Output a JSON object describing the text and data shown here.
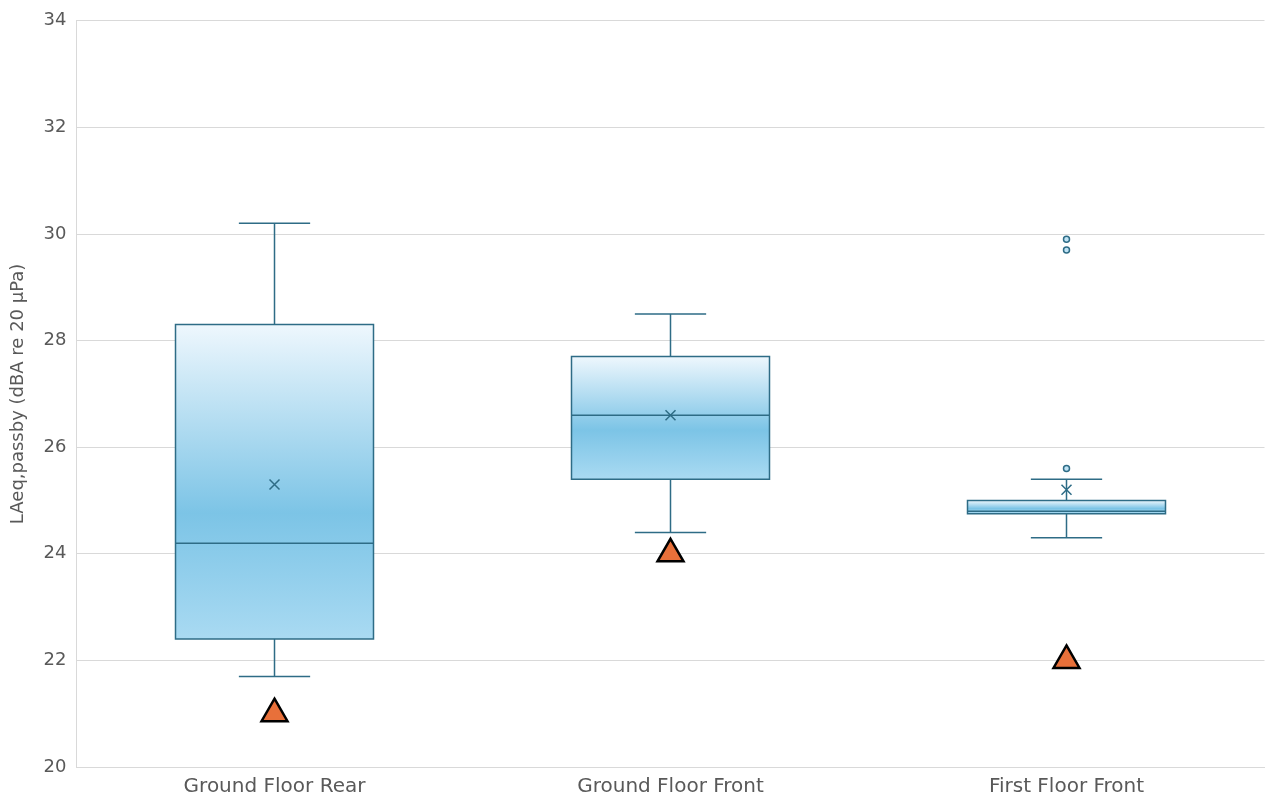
{
  "chart_data": {
    "type": "box",
    "ylabel": "LAeq,passby (dBA re 20 μPa)",
    "categories": [
      "Ground Floor Rear",
      "Ground Floor Front",
      "First Floor Front"
    ],
    "ylim": [
      20,
      34
    ],
    "yticks": [
      20,
      22,
      24,
      26,
      28,
      30,
      32,
      34
    ],
    "grid": "y",
    "legend": false,
    "series": [
      {
        "type": "box",
        "color": "#7cc4e6",
        "boxes": [
          {
            "low": 21.7,
            "q1": 22.4,
            "median": 24.2,
            "q3": 28.3,
            "high": 30.2,
            "mean": 25.3
          },
          {
            "low": 24.4,
            "q1": 25.4,
            "median": 26.6,
            "q3": 27.7,
            "high": 28.5,
            "mean": 26.6
          },
          {
            "low": 24.3,
            "q1": 24.75,
            "median": 24.8,
            "q3": 25.0,
            "high": 25.4,
            "mean": 25.2,
            "outliers": [
              29.9,
              29.7,
              25.6
            ]
          }
        ]
      },
      {
        "type": "scatter",
        "color": "#e8703a",
        "marker": "triangle",
        "x": [
          "Ground Floor Rear",
          "Ground Floor Front",
          "First Floor Front"
        ],
        "values": [
          21.0,
          24.0,
          22.0
        ]
      }
    ]
  }
}
